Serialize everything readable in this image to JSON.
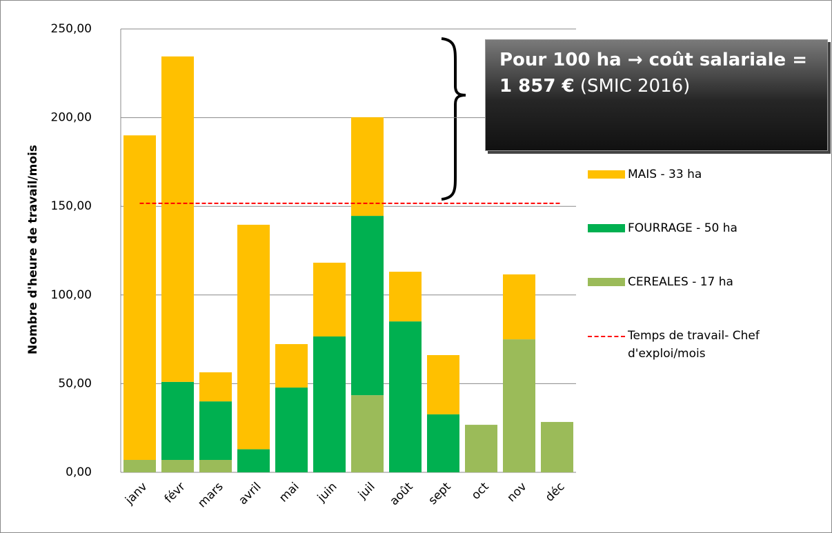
{
  "chart_data": {
    "type": "bar",
    "stacked": true,
    "y_label": "Nombre d'heure de travail/mois",
    "categories": [
      "janv",
      "févr",
      "mars",
      "avril",
      "mai",
      "juin",
      "juil",
      "août",
      "sept",
      "oct",
      "nov",
      "déc"
    ],
    "series": [
      {
        "name": "MAIS - 33 ha",
        "color": "#ffc000",
        "values": [
          183,
          183.5,
          16.4,
          126.6,
          24.5,
          41.6,
          55.6,
          28,
          33.4,
          0,
          36.6,
          0
        ]
      },
      {
        "name": "FOURRAGE - 50 ha",
        "color": "#00b050",
        "values": [
          0,
          44,
          33,
          13,
          47.8,
          76.6,
          101.1,
          85.1,
          32.7,
          0,
          0,
          0
        ]
      },
      {
        "name": "CEREALES - 17 ha",
        "color": "#9bbb59",
        "values": [
          7,
          7,
          7,
          0,
          0,
          0,
          43.5,
          0,
          0,
          26.8,
          75,
          28.4
        ]
      }
    ],
    "reference_line": {
      "name": "Temps de travail- Chef d'exploi/mois",
      "color": "#ff0000",
      "value": 151.67
    },
    "ylim": [
      0,
      250
    ],
    "yticks": [
      {
        "value": 0,
        "label": "0,00"
      },
      {
        "value": 50,
        "label": "50,00"
      },
      {
        "value": 100,
        "label": "100,00"
      },
      {
        "value": 150,
        "label": "150,00"
      },
      {
        "value": 200,
        "label": "200,00"
      },
      {
        "value": 250,
        "label": "250,00"
      }
    ],
    "grid": true,
    "annotation": {
      "bold": "Pour 100 ha → coût salariale = 1 857 €",
      "text": "(SMIC 2016)"
    }
  }
}
